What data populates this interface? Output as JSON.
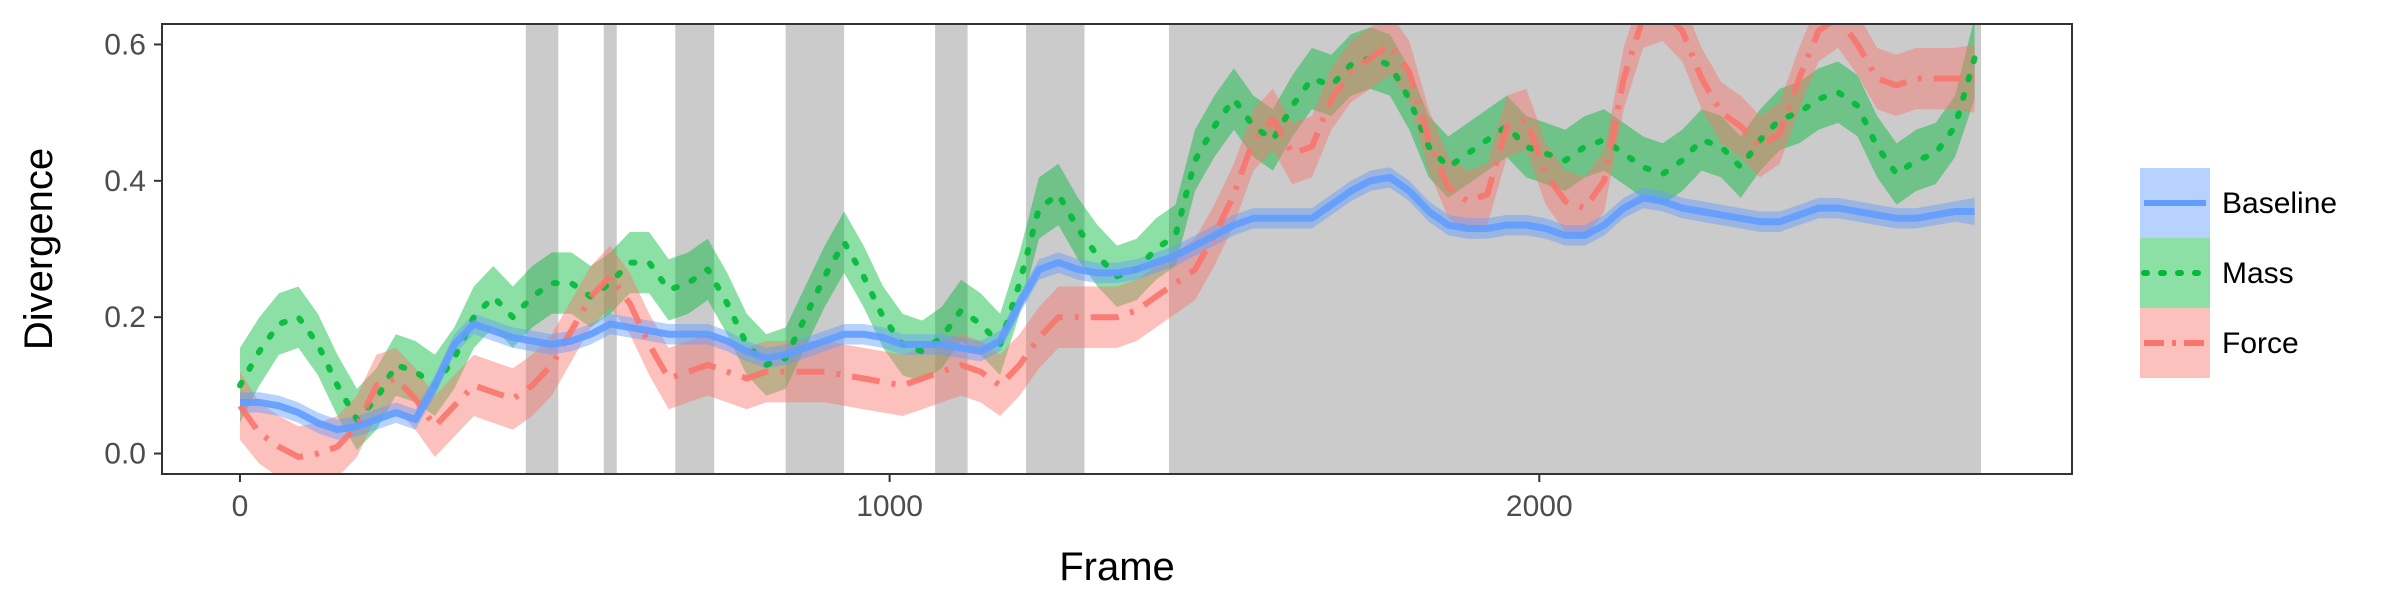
{
  "chart_data": {
    "type": "line",
    "xlabel": "Frame",
    "ylabel": "Divergence",
    "xlim": [
      -120,
      2820
    ],
    "ylim": [
      -0.03,
      0.63
    ],
    "x_ticks": [
      0,
      1000,
      2000
    ],
    "x_tick_labels": [
      "0",
      "1000",
      "2000"
    ],
    "y_ticks": [
      0.0,
      0.2,
      0.4,
      0.6
    ],
    "y_tick_labels": [
      "0.0",
      "0.2",
      "0.4",
      "0.6"
    ],
    "grid": false,
    "legend_position": "right",
    "shaded_intervals": [
      [
        440,
        490
      ],
      [
        560,
        580
      ],
      [
        670,
        730
      ],
      [
        840,
        930
      ],
      [
        1070,
        1120
      ],
      [
        1210,
        1300
      ],
      [
        1430,
        2680
      ]
    ],
    "x": [
      0,
      30,
      60,
      90,
      120,
      150,
      180,
      210,
      240,
      270,
      300,
      330,
      360,
      390,
      420,
      450,
      480,
      510,
      540,
      570,
      600,
      630,
      660,
      690,
      720,
      750,
      780,
      810,
      840,
      870,
      900,
      930,
      960,
      990,
      1020,
      1050,
      1080,
      1110,
      1140,
      1170,
      1200,
      1230,
      1260,
      1290,
      1320,
      1350,
      1380,
      1410,
      1440,
      1470,
      1500,
      1530,
      1560,
      1590,
      1620,
      1650,
      1680,
      1710,
      1740,
      1770,
      1800,
      1830,
      1860,
      1890,
      1920,
      1950,
      1980,
      2010,
      2040,
      2070,
      2100,
      2130,
      2160,
      2190,
      2220,
      2250,
      2280,
      2310,
      2340,
      2370,
      2400,
      2430,
      2460,
      2490,
      2520,
      2550,
      2580,
      2610,
      2640,
      2670
    ],
    "series": [
      {
        "name": "Baseline",
        "color": "#619CFF",
        "dash": "solid",
        "values": [
          0.075,
          0.075,
          0.07,
          0.06,
          0.045,
          0.035,
          0.04,
          0.05,
          0.06,
          0.05,
          0.1,
          0.16,
          0.19,
          0.18,
          0.17,
          0.165,
          0.16,
          0.165,
          0.175,
          0.19,
          0.185,
          0.18,
          0.175,
          0.175,
          0.175,
          0.165,
          0.15,
          0.14,
          0.145,
          0.155,
          0.165,
          0.175,
          0.175,
          0.17,
          0.16,
          0.16,
          0.16,
          0.155,
          0.15,
          0.165,
          0.22,
          0.27,
          0.28,
          0.27,
          0.265,
          0.265,
          0.27,
          0.28,
          0.29,
          0.305,
          0.32,
          0.335,
          0.345,
          0.345,
          0.345,
          0.345,
          0.365,
          0.385,
          0.4,
          0.405,
          0.385,
          0.355,
          0.335,
          0.33,
          0.33,
          0.335,
          0.335,
          0.33,
          0.32,
          0.32,
          0.335,
          0.36,
          0.375,
          0.37,
          0.36,
          0.355,
          0.35,
          0.345,
          0.34,
          0.34,
          0.35,
          0.36,
          0.36,
          0.355,
          0.35,
          0.345,
          0.345,
          0.35,
          0.355,
          0.355
        ],
        "band_halfwidth": [
          0.015,
          0.015,
          0.015,
          0.015,
          0.015,
          0.015,
          0.015,
          0.015,
          0.015,
          0.015,
          0.015,
          0.015,
          0.015,
          0.015,
          0.015,
          0.015,
          0.015,
          0.015,
          0.015,
          0.015,
          0.015,
          0.015,
          0.015,
          0.015,
          0.015,
          0.015,
          0.015,
          0.015,
          0.015,
          0.015,
          0.015,
          0.015,
          0.015,
          0.015,
          0.015,
          0.015,
          0.015,
          0.015,
          0.015,
          0.015,
          0.015,
          0.015,
          0.015,
          0.015,
          0.015,
          0.015,
          0.015,
          0.015,
          0.015,
          0.015,
          0.015,
          0.015,
          0.015,
          0.015,
          0.015,
          0.015,
          0.015,
          0.015,
          0.015,
          0.015,
          0.015,
          0.015,
          0.015,
          0.015,
          0.015,
          0.015,
          0.015,
          0.015,
          0.015,
          0.015,
          0.015,
          0.015,
          0.015,
          0.015,
          0.015,
          0.015,
          0.015,
          0.015,
          0.015,
          0.015,
          0.015,
          0.015,
          0.015,
          0.015,
          0.015,
          0.015,
          0.015,
          0.015,
          0.015,
          0.02
        ]
      },
      {
        "name": "Mass",
        "color": "#00BA38",
        "dash": "dotted",
        "values": [
          0.1,
          0.15,
          0.19,
          0.2,
          0.16,
          0.1,
          0.05,
          0.08,
          0.13,
          0.12,
          0.1,
          0.14,
          0.2,
          0.23,
          0.2,
          0.23,
          0.25,
          0.25,
          0.23,
          0.25,
          0.28,
          0.28,
          0.24,
          0.25,
          0.27,
          0.22,
          0.16,
          0.13,
          0.14,
          0.2,
          0.26,
          0.31,
          0.26,
          0.2,
          0.16,
          0.15,
          0.17,
          0.21,
          0.19,
          0.16,
          0.25,
          0.36,
          0.38,
          0.33,
          0.29,
          0.26,
          0.27,
          0.3,
          0.32,
          0.43,
          0.48,
          0.52,
          0.48,
          0.46,
          0.51,
          0.55,
          0.54,
          0.57,
          0.58,
          0.57,
          0.52,
          0.45,
          0.42,
          0.44,
          0.46,
          0.48,
          0.45,
          0.44,
          0.43,
          0.45,
          0.46,
          0.44,
          0.42,
          0.41,
          0.43,
          0.46,
          0.45,
          0.42,
          0.46,
          0.49,
          0.5,
          0.52,
          0.53,
          0.51,
          0.45,
          0.41,
          0.43,
          0.44,
          0.48,
          0.58
        ],
        "band_halfwidth": [
          0.055,
          0.05,
          0.045,
          0.045,
          0.045,
          0.045,
          0.045,
          0.045,
          0.045,
          0.045,
          0.045,
          0.045,
          0.045,
          0.045,
          0.045,
          0.045,
          0.045,
          0.045,
          0.045,
          0.045,
          0.045,
          0.045,
          0.045,
          0.045,
          0.045,
          0.045,
          0.045,
          0.045,
          0.045,
          0.045,
          0.045,
          0.045,
          0.045,
          0.045,
          0.045,
          0.045,
          0.045,
          0.045,
          0.045,
          0.045,
          0.045,
          0.045,
          0.045,
          0.045,
          0.045,
          0.045,
          0.045,
          0.045,
          0.045,
          0.045,
          0.045,
          0.045,
          0.045,
          0.045,
          0.045,
          0.045,
          0.045,
          0.045,
          0.045,
          0.045,
          0.045,
          0.045,
          0.045,
          0.045,
          0.045,
          0.045,
          0.045,
          0.045,
          0.045,
          0.045,
          0.045,
          0.045,
          0.045,
          0.045,
          0.045,
          0.045,
          0.045,
          0.045,
          0.045,
          0.045,
          0.045,
          0.045,
          0.045,
          0.045,
          0.045,
          0.045,
          0.045,
          0.045,
          0.045,
          0.06
        ]
      },
      {
        "name": "Force",
        "color": "#F8766D",
        "dash": "dashdot",
        "values": [
          0.07,
          0.03,
          0.01,
          -0.005,
          0.0,
          0.01,
          0.04,
          0.1,
          0.11,
          0.08,
          0.04,
          0.07,
          0.1,
          0.09,
          0.08,
          0.1,
          0.13,
          0.18,
          0.23,
          0.26,
          0.22,
          0.16,
          0.11,
          0.12,
          0.13,
          0.12,
          0.11,
          0.12,
          0.12,
          0.12,
          0.12,
          0.115,
          0.11,
          0.105,
          0.1,
          0.11,
          0.12,
          0.13,
          0.12,
          0.1,
          0.13,
          0.17,
          0.2,
          0.2,
          0.2,
          0.2,
          0.21,
          0.23,
          0.25,
          0.27,
          0.32,
          0.38,
          0.46,
          0.49,
          0.44,
          0.45,
          0.52,
          0.56,
          0.58,
          0.6,
          0.56,
          0.46,
          0.39,
          0.37,
          0.38,
          0.48,
          0.49,
          0.41,
          0.37,
          0.36,
          0.4,
          0.55,
          0.64,
          0.65,
          0.62,
          0.55,
          0.5,
          0.48,
          0.45,
          0.47,
          0.55,
          0.62,
          0.64,
          0.6,
          0.55,
          0.54,
          0.55,
          0.55,
          0.55,
          0.55
        ],
        "band_halfwidth": [
          0.05,
          0.045,
          0.045,
          0.045,
          0.045,
          0.045,
          0.045,
          0.045,
          0.045,
          0.045,
          0.045,
          0.045,
          0.045,
          0.045,
          0.045,
          0.045,
          0.045,
          0.045,
          0.045,
          0.045,
          0.045,
          0.045,
          0.045,
          0.045,
          0.045,
          0.045,
          0.045,
          0.045,
          0.045,
          0.045,
          0.045,
          0.045,
          0.045,
          0.045,
          0.045,
          0.045,
          0.045,
          0.045,
          0.045,
          0.045,
          0.045,
          0.045,
          0.045,
          0.045,
          0.045,
          0.045,
          0.045,
          0.045,
          0.045,
          0.045,
          0.045,
          0.045,
          0.045,
          0.045,
          0.045,
          0.045,
          0.045,
          0.045,
          0.045,
          0.045,
          0.045,
          0.045,
          0.045,
          0.045,
          0.045,
          0.045,
          0.045,
          0.045,
          0.045,
          0.045,
          0.045,
          0.045,
          0.045,
          0.045,
          0.045,
          0.045,
          0.045,
          0.045,
          0.045,
          0.045,
          0.045,
          0.045,
          0.045,
          0.045,
          0.045,
          0.045,
          0.045,
          0.045,
          0.045,
          0.05
        ]
      }
    ]
  }
}
